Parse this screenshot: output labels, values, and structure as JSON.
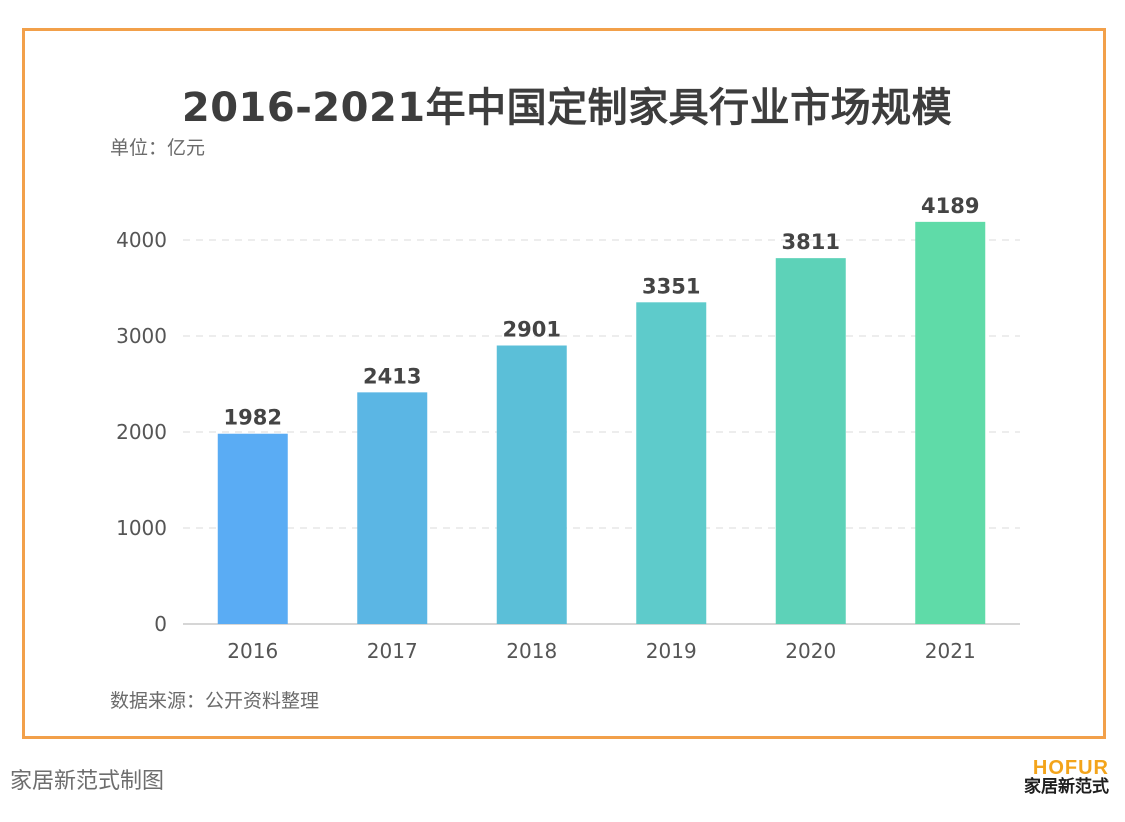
{
  "chart_data": {
    "type": "bar",
    "title": "2016-2021年中国定制家具行业市场规模",
    "unit_label": "单位：亿元",
    "source_label": "数据来源：公开资料整理",
    "categories": [
      "2016",
      "2017",
      "2018",
      "2019",
      "2020",
      "2021"
    ],
    "values": [
      1982,
      2413,
      2901,
      3351,
      3811,
      4189
    ],
    "data_labels": [
      "1982",
      "2413",
      "2901",
      "3351",
      "3811",
      "4189"
    ],
    "y_ticks": [
      "0",
      "1000",
      "2000",
      "3000",
      "4000"
    ],
    "y_tick_values": [
      0,
      1000,
      2000,
      3000,
      4000
    ],
    "ylim": [
      0,
      4000
    ],
    "grid": true,
    "bar_colors": [
      "#5aacf4",
      "#5bb6e4",
      "#5bbfd8",
      "#5ecbcb",
      "#5dd2b8",
      "#5fdba8"
    ]
  },
  "footer": {
    "credit": "家居新范式制图"
  },
  "brand": {
    "name_en": "HOFUR",
    "name_cn": "家居新范式"
  },
  "colors": {
    "frame": "#f2a04a",
    "title": "#3d3d3d",
    "axis_text": "#555555",
    "grid": "#e2e2e2",
    "brand_accent": "#f3a41b"
  }
}
